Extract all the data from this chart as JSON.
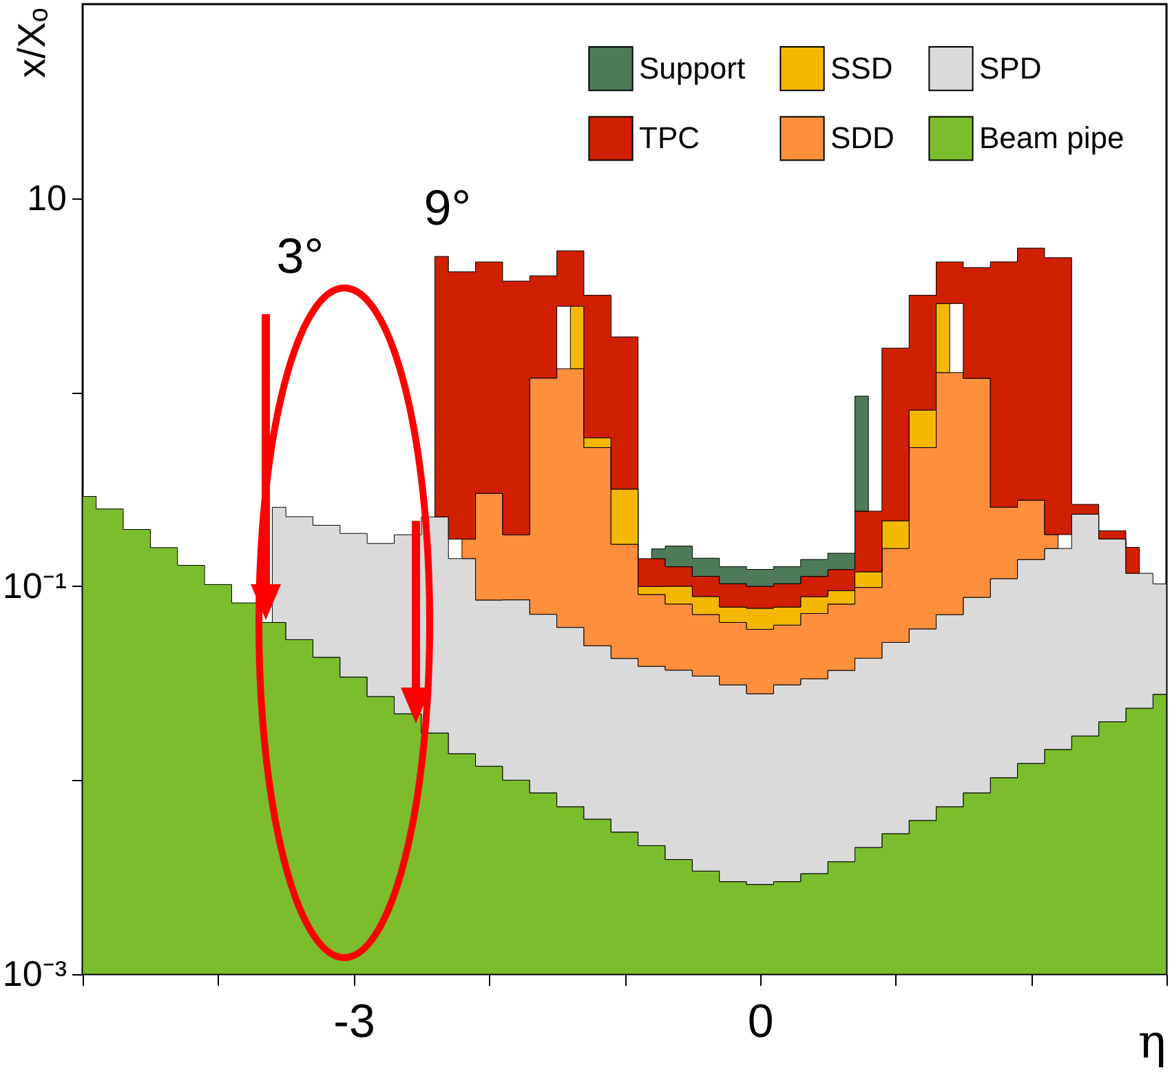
{
  "chart_data": {
    "type": "area",
    "stacked": true,
    "log": "y",
    "xlabel": "η",
    "ylabel": "x/Xₒ",
    "legend": "top right",
    "xlim": [
      -5,
      3
    ],
    "xticks": [
      {
        "value": -5,
        "label": null
      },
      {
        "value": -4,
        "label": null
      },
      -3,
      {
        "value": -2,
        "label": null
      },
      {
        "value": -1,
        "label": null
      },
      0,
      {
        "value": 1,
        "label": null
      },
      {
        "value": 2,
        "label": null
      },
      {
        "value": 3,
        "label": null
      }
    ],
    "ylim": [
      0.001,
      100
    ],
    "yticks": [
      {
        "value": 0.001,
        "label": "10⁻³"
      },
      {
        "value": 0.01,
        "label": null
      },
      {
        "value": 0.1,
        "label": "10⁻¹"
      },
      {
        "value": 1,
        "label": null
      },
      10
    ],
    "x": [
      -5.0,
      -4.8,
      -4.6,
      -4.4,
      -4.2,
      -4.0,
      -3.8,
      -3.6,
      -3.4,
      -3.2,
      -3.0,
      -2.8,
      -2.6,
      -2.4,
      -2.2,
      -2.0,
      -1.8,
      -1.6,
      -1.4,
      -1.2,
      -1.0,
      -0.8,
      -0.6,
      -0.4,
      -0.2,
      0,
      0.2,
      0.4,
      0.6,
      0.8,
      1.0,
      1.2,
      1.4,
      1.6,
      1.8,
      2.0,
      2.2,
      2.4,
      2.6,
      2.8,
      3.0
    ],
    "series": [
      {
        "name": "Beam pipe",
        "color": "#7bbd2d",
        "values": [
          0.29,
          0.25,
          0.196,
          0.158,
          0.128,
          0.102,
          0.082,
          0.065,
          0.053,
          0.043,
          0.034,
          0.027,
          0.022,
          0.0175,
          0.0137,
          0.0118,
          0.01,
          0.0086,
          0.0073,
          0.0063,
          0.0054,
          0.0046,
          0.0039,
          0.0034,
          0.003,
          0.0029,
          0.003,
          0.0033,
          0.0038,
          0.0045,
          0.0053,
          0.0062,
          0.0073,
          0.0086,
          0.0103,
          0.0122,
          0.0144,
          0.0169,
          0.02,
          0.0235,
          0.0277
        ]
      },
      {
        "name": "SPD",
        "color": "#dadada",
        "values": [
          null,
          null,
          null,
          null,
          null,
          null,
          null,
          0.19,
          0.175,
          0.163,
          0.153,
          0.139,
          0.162,
          0.21,
          0.125,
          0.073,
          0.075,
          0.063,
          0.054,
          0.043,
          0.037,
          0.034,
          0.033,
          0.031,
          0.028,
          0.025,
          0.028,
          0.03,
          0.033,
          0.038,
          0.046,
          0.054,
          0.064,
          0.079,
          0.099,
          0.125,
          0.142,
          0.218,
          0.155,
          0.093,
          0.075
        ]
      },
      {
        "name": "SDD",
        "color": "#fd8f3d",
        "values": [
          null,
          null,
          null,
          null,
          null,
          null,
          null,
          null,
          null,
          null,
          null,
          null,
          null,
          null,
          0.036,
          0.216,
          0.099,
          1.11,
          1.26,
          0.469,
          0.122,
          0.052,
          0.044,
          0.037,
          0.034,
          0.032,
          0.032,
          0.039,
          0.044,
          0.056,
          0.105,
          0.458,
          1.19,
          1.09,
          0.146,
          0.14,
          0.028,
          null,
          null,
          null,
          null
        ]
      },
      {
        "name": "SSD",
        "color": "#f5b800",
        "values": [
          null,
          null,
          null,
          null,
          null,
          null,
          null,
          null,
          null,
          null,
          null,
          null,
          null,
          null,
          null,
          null,
          null,
          null,
          1.45,
          0.063,
          0.152,
          0.009,
          0.019,
          0.017,
          0.013,
          0.017,
          0.015,
          0.016,
          0.014,
          0.02,
          0.061,
          0.29,
          1.6,
          null,
          null,
          null,
          null,
          null,
          null,
          null,
          null
        ]
      },
      {
        "name": "TPC",
        "color": "#d02000",
        "values": [
          null,
          null,
          null,
          null,
          null,
          null,
          null,
          null,
          null,
          null,
          null,
          null,
          null,
          4.78,
          4.0,
          4.39,
          3.55,
          2.8,
          2.58,
          2.58,
          1.61,
          0.039,
          0.026,
          0.024,
          0.025,
          0.023,
          0.025,
          0.024,
          0.027,
          0.125,
          1.47,
          2.35,
          1.83,
          3.21,
          4.44,
          5.25,
          4.75,
          0.029,
          0.018,
          0.042,
          null
        ]
      },
      {
        "name": "Support",
        "color": "#4e7a5a",
        "values": [
          null,
          null,
          null,
          null,
          null,
          null,
          null,
          null,
          null,
          null,
          null,
          null,
          null,
          null,
          null,
          null,
          null,
          null,
          null,
          null,
          null,
          0.017,
          0.035,
          0.027,
          0.023,
          0.022,
          0.023,
          0.025,
          0.026,
          0.71,
          null,
          null,
          null,
          null,
          null,
          null,
          null,
          null,
          null,
          null,
          null
        ]
      }
    ],
    "annotations": [
      "3°",
      "9°"
    ]
  }
}
